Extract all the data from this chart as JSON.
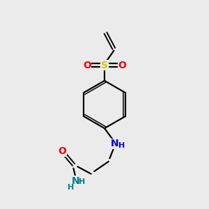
{
  "background_color": "#ebebeb",
  "bond_color": "#000000",
  "S_color": "#cccc00",
  "O_color": "#ff0000",
  "N_color": "#0000ff",
  "NH2_color": "#008080",
  "figsize": [
    3.0,
    3.0
  ],
  "dpi": 100,
  "xlim": [
    0,
    10
  ],
  "ylim": [
    0,
    10
  ]
}
